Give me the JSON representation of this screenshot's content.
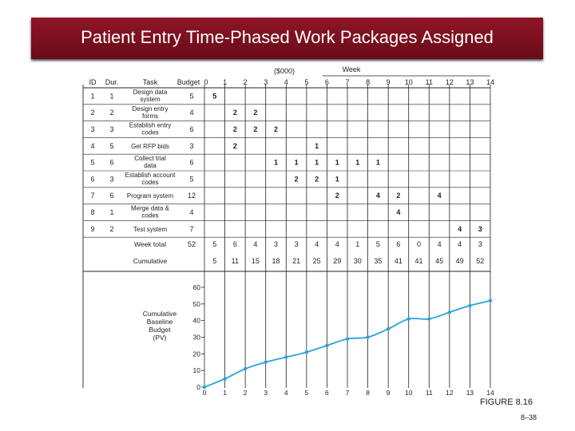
{
  "slide": {
    "title": "Patient Entry Time-Phased Work Packages Assigned",
    "figure_caption": "FIGURE 8.16",
    "slide_number": "8–38"
  },
  "colors": {
    "title_bg": "#7b1020",
    "curve": "#29a3d9",
    "grid": "#222222"
  },
  "table": {
    "headers": {
      "id": "ID",
      "dur": "Dur.",
      "task": "Task",
      "budget": "Budget",
      "budget_unit": "($000)",
      "week": "Week"
    },
    "weeks": [
      "0",
      "1",
      "2",
      "3",
      "4",
      "5",
      "6",
      "7",
      "8",
      "9",
      "10",
      "11",
      "12",
      "13",
      "14"
    ],
    "rows": [
      {
        "id": "1",
        "dur": "1",
        "task": [
          "Design data",
          "system"
        ],
        "budget": "5",
        "cells": [
          "5",
          "",
          "",
          "",
          "",
          "",
          "",
          "",
          "",
          "",
          "",
          "",
          "",
          ""
        ]
      },
      {
        "id": "2",
        "dur": "2",
        "task": [
          "Design entry",
          "forms"
        ],
        "budget": "4",
        "cells": [
          "",
          "2",
          "2",
          "",
          "",
          "",
          "",
          "",
          "",
          "",
          "",
          "",
          "",
          ""
        ]
      },
      {
        "id": "3",
        "dur": "3",
        "task": [
          "Establish entry",
          "codes"
        ],
        "budget": "6",
        "cells": [
          "",
          "2",
          "2",
          "2",
          "",
          "",
          "",
          "",
          "",
          "",
          "",
          "",
          "",
          ""
        ]
      },
      {
        "id": "4",
        "dur": "5",
        "task": [
          "Get RFP bids"
        ],
        "budget": "3",
        "cells": [
          "",
          "2",
          "",
          "",
          "",
          "1",
          "",
          "",
          "",
          "",
          "",
          "",
          "",
          ""
        ]
      },
      {
        "id": "5",
        "dur": "6",
        "task": [
          "Collect trial",
          "data"
        ],
        "budget": "6",
        "cells": [
          "",
          "",
          "",
          "1",
          "1",
          "1",
          "1",
          "1",
          "1",
          "",
          "",
          "",
          "",
          ""
        ]
      },
      {
        "id": "6",
        "dur": "3",
        "task": [
          "Establish account",
          "codes"
        ],
        "budget": "5",
        "cells": [
          "",
          "",
          "",
          "",
          "2",
          "2",
          "1",
          "",
          "",
          "",
          "",
          "",
          "",
          ""
        ]
      },
      {
        "id": "7",
        "dur": "6",
        "task": [
          "Program system"
        ],
        "budget": "12",
        "cells": [
          "",
          "",
          "",
          "",
          "",
          "",
          "2",
          "",
          "4",
          "2",
          "",
          "4",
          "",
          ""
        ]
      },
      {
        "id": "8",
        "dur": "1",
        "task": [
          "Merge data &",
          "codes"
        ],
        "budget": "4",
        "cells": [
          "",
          "",
          "",
          "",
          "",
          "",
          "",
          "",
          "",
          "4",
          "",
          "",
          "",
          ""
        ]
      },
      {
        "id": "9",
        "dur": "2",
        "task": [
          "Test system"
        ],
        "budget": "7",
        "cells": [
          "",
          "",
          "",
          "",
          "",
          "",
          "",
          "",
          "",
          "",
          "",
          "",
          "4",
          "3"
        ]
      }
    ],
    "week_total": {
      "label": "Week total",
      "budget": "52",
      "cells": [
        "5",
        "6",
        "4",
        "3",
        "3",
        "4",
        "4",
        "1",
        "5",
        "6",
        "0",
        "4",
        "4",
        "3"
      ]
    },
    "cumulative": {
      "label": "Cumulative",
      "cells": [
        "5",
        "11",
        "15",
        "18",
        "21",
        "25",
        "29",
        "30",
        "35",
        "41",
        "41",
        "45",
        "49",
        "52"
      ]
    }
  },
  "chart_data": {
    "type": "line",
    "ylabel": [
      "Cumulative",
      "Baseline",
      "Budget",
      "(PV)"
    ],
    "x": [
      0,
      1,
      2,
      3,
      4,
      5,
      6,
      7,
      8,
      9,
      10,
      11,
      12,
      13,
      14
    ],
    "values": [
      0,
      5,
      11,
      15,
      18,
      21,
      25,
      29,
      30,
      35,
      41,
      41,
      45,
      49,
      52
    ],
    "xlim": [
      0,
      14
    ],
    "ylim": [
      0,
      60
    ],
    "yticks": [
      "0",
      "10",
      "20",
      "30",
      "40",
      "50",
      "60"
    ],
    "xticks": [
      "0",
      "1",
      "2",
      "3",
      "4",
      "5",
      "6",
      "7",
      "8",
      "9",
      "10",
      "11",
      "12",
      "13",
      "14"
    ]
  }
}
